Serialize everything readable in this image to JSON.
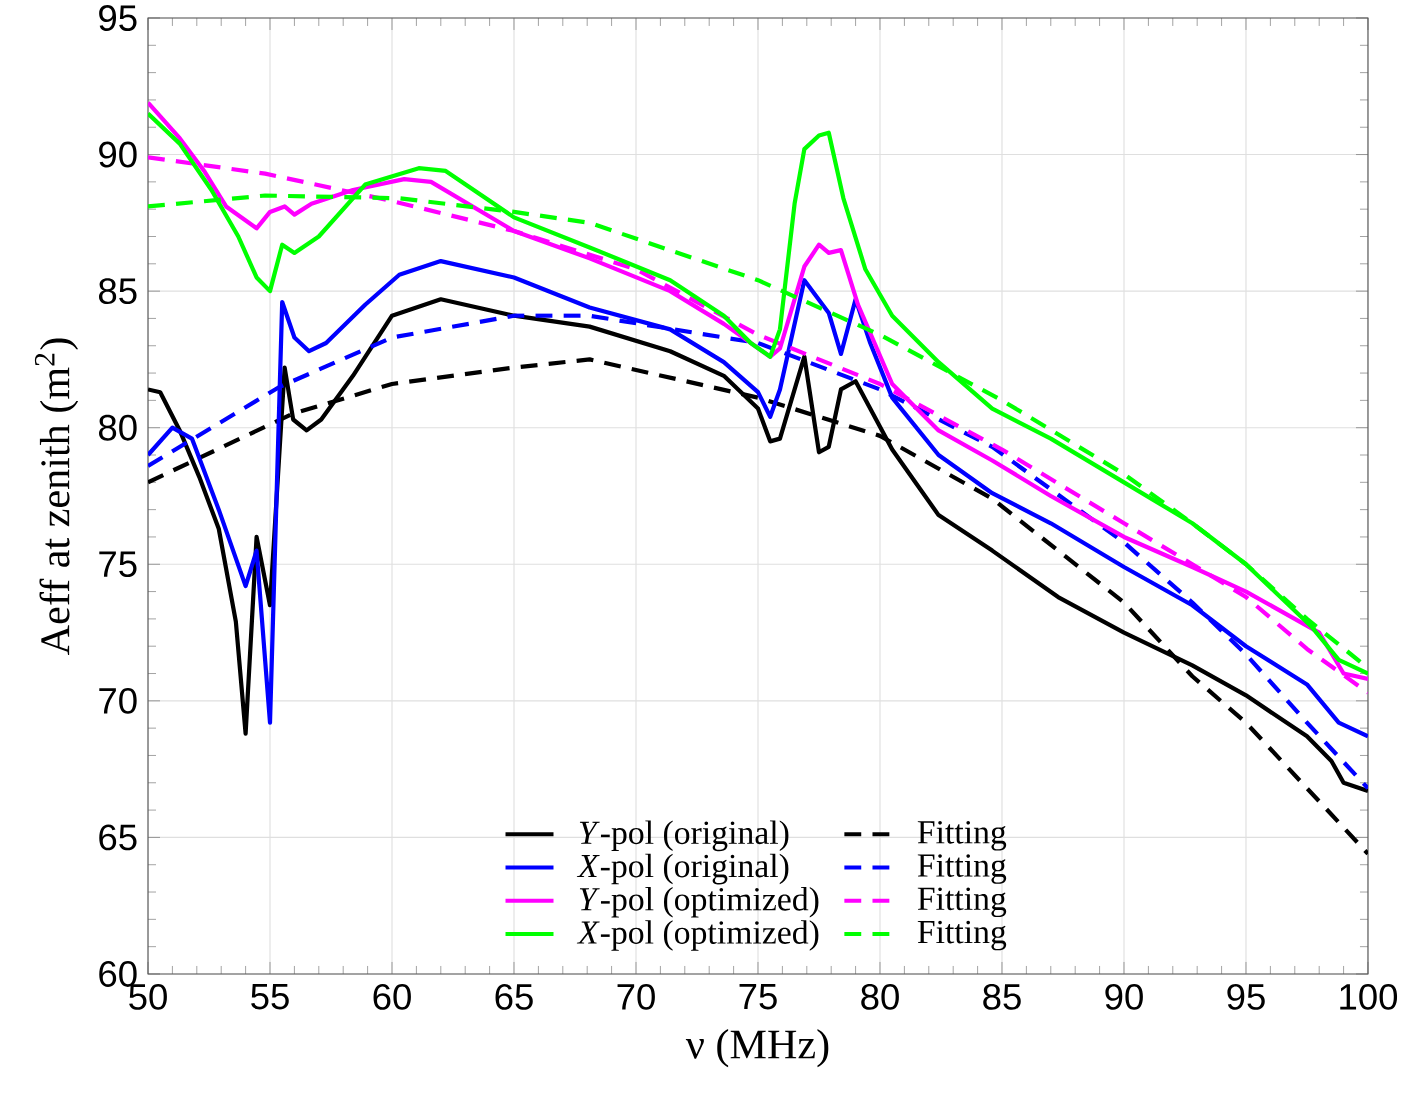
{
  "chart_data": {
    "type": "line",
    "xlabel": "ν (MHz)",
    "ylabel": "Aeff at zenith (m$^{2}$)",
    "xlim": [
      50,
      100
    ],
    "ylim": [
      60,
      95
    ],
    "xticks": [
      50,
      55,
      60,
      65,
      70,
      75,
      80,
      85,
      90,
      95,
      100
    ],
    "yticks": [
      60,
      65,
      70,
      75,
      80,
      85,
      90,
      95
    ],
    "grid": true,
    "legend": "bottom",
    "series": [
      {
        "name": "*Y*-pol (original)",
        "color": "#000000",
        "line_style": "solid",
        "x": [
          50,
          50.5,
          51.3,
          52.1,
          52.9,
          53.6,
          54.0,
          54.45,
          55.0,
          55.6,
          55.95,
          56.5,
          57.1,
          58.4,
          60,
          62,
          65,
          68.1,
          71.4,
          73.6,
          75,
          75.5,
          75.9,
          76.9,
          77.5,
          77.9,
          78.4,
          79.0,
          80.5,
          82.4,
          84.6,
          87.3,
          90,
          92.8,
          95,
          97.5,
          98.5,
          99,
          100
        ],
        "values": [
          81.4,
          81.3,
          79.9,
          78.2,
          76.3,
          72.9,
          68.8,
          76.0,
          73.5,
          82.2,
          80.3,
          79.9,
          80.3,
          81.9,
          84.1,
          84.7,
          84.1,
          83.7,
          82.8,
          81.9,
          80.7,
          79.5,
          79.6,
          82.6,
          79.1,
          79.3,
          81.4,
          81.7,
          79.2,
          76.8,
          75.5,
          73.8,
          72.5,
          71.3,
          70.2,
          68.7,
          67.8,
          67.0,
          66.7
        ]
      },
      {
        "name": "Fitting",
        "color": "#000000",
        "line_style": "dashed",
        "x": [
          50,
          55.9,
          60,
          65,
          68.1,
          75,
          80,
          84.6,
          90,
          92.8,
          95,
          97.5,
          100
        ],
        "values": [
          78.0,
          80.5,
          81.6,
          82.2,
          82.5,
          81.1,
          79.7,
          77.4,
          73.6,
          70.9,
          69.2,
          66.8,
          64.4
        ]
      },
      {
        "name": "*X*-pol (original)",
        "color": "#0000ff",
        "line_style": "solid",
        "x": [
          50,
          51,
          51.8,
          52.9,
          54.0,
          54.45,
          55.0,
          55.5,
          56.0,
          56.6,
          57.3,
          58.9,
          60.3,
          62,
          65,
          68.1,
          71.4,
          73.6,
          75,
          75.5,
          75.9,
          76.9,
          77.9,
          78.4,
          79.0,
          79.6,
          80.5,
          82.4,
          84.6,
          87,
          90,
          92.8,
          95,
          97.5,
          98.8,
          100
        ],
        "values": [
          79.0,
          80.0,
          79.6,
          77.0,
          74.2,
          75.5,
          69.2,
          84.6,
          83.3,
          82.8,
          83.1,
          84.5,
          85.6,
          86.1,
          85.5,
          84.4,
          83.6,
          82.4,
          81.3,
          80.4,
          81.4,
          85.4,
          84.2,
          82.7,
          84.7,
          83.1,
          81.1,
          79.0,
          77.6,
          76.5,
          74.9,
          73.5,
          72.0,
          70.6,
          69.2,
          68.7
        ]
      },
      {
        "name": "Fitting",
        "color": "#0000ff",
        "line_style": "dashed",
        "x": [
          50,
          55.4,
          60,
          65,
          68.1,
          75,
          80,
          84.6,
          90,
          92.8,
          95,
          97.5,
          100
        ],
        "values": [
          78.6,
          81.5,
          83.3,
          84.1,
          84.1,
          83.1,
          81.4,
          79.3,
          75.8,
          73.6,
          71.7,
          69.2,
          66.8
        ]
      },
      {
        "name": "*Y*-pol (optimized)",
        "color": "#ff00ff",
        "line_style": "solid",
        "x": [
          50,
          51.3,
          52.3,
          53.2,
          54.45,
          55.0,
          55.6,
          56.0,
          56.7,
          58.4,
          60.5,
          61.6,
          65,
          68.1,
          71.4,
          73.6,
          75.5,
          75.9,
          76.9,
          77.5,
          77.9,
          78.4,
          79.1,
          80.5,
          82.4,
          84.6,
          87,
          90,
          92.8,
          95,
          98,
          99,
          100
        ],
        "values": [
          91.9,
          90.6,
          89.4,
          88.1,
          87.3,
          87.9,
          88.1,
          87.8,
          88.2,
          88.7,
          89.1,
          89.0,
          87.2,
          86.2,
          85.0,
          83.8,
          82.6,
          82.9,
          85.9,
          86.7,
          86.4,
          86.5,
          84.5,
          81.6,
          79.9,
          78.8,
          77.5,
          76.0,
          74.9,
          74.0,
          72.5,
          71.0,
          70.8
        ]
      },
      {
        "name": "Fitting",
        "color": "#ff00ff",
        "line_style": "dashed",
        "x": [
          50,
          54.8,
          60,
          65,
          70,
          75,
          80,
          85,
          90,
          92.8,
          95,
          97.5,
          100
        ],
        "values": [
          89.9,
          89.3,
          88.3,
          87.2,
          85.8,
          83.4,
          81.6,
          79.2,
          76.5,
          75.0,
          73.8,
          71.9,
          70.3
        ]
      },
      {
        "name": "*X*-pol (optimized)",
        "color": "#00ff00",
        "line_style": "solid",
        "x": [
          50,
          51.3,
          52.6,
          53.7,
          54.45,
          55.0,
          55.5,
          56.0,
          57.0,
          58.9,
          61.1,
          62.2,
          65,
          68.1,
          71.4,
          73.6,
          74.7,
          75.5,
          75.9,
          76.5,
          76.9,
          77.5,
          77.9,
          78.5,
          79.4,
          80.5,
          82.4,
          84.6,
          87,
          90,
          92.8,
          95,
          97.7,
          98.8,
          100
        ],
        "values": [
          91.5,
          90.4,
          88.7,
          87.0,
          85.5,
          85.0,
          86.7,
          86.4,
          87.0,
          88.9,
          89.5,
          89.4,
          87.7,
          86.6,
          85.4,
          84.1,
          83.1,
          82.6,
          83.6,
          88.2,
          90.2,
          90.7,
          90.8,
          88.4,
          85.8,
          84.1,
          82.4,
          80.7,
          79.6,
          78.0,
          76.5,
          75.0,
          72.7,
          71.5,
          71.0
        ]
      },
      {
        "name": "Fitting",
        "color": "#00ff00",
        "line_style": "dashed",
        "x": [
          50,
          54.8,
          60.3,
          65,
          68.1,
          75,
          80,
          85,
          90,
          92.8,
          95,
          97.5,
          100
        ],
        "values": [
          88.1,
          88.5,
          88.4,
          87.9,
          87.5,
          85.4,
          83.4,
          81.0,
          78.3,
          76.5,
          75.0,
          73.0,
          71.2
        ]
      }
    ]
  }
}
